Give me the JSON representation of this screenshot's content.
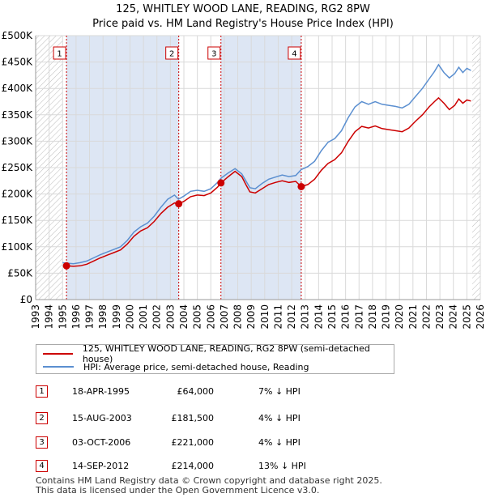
{
  "title_line1": "125, WHITLEY WOOD LANE, READING, RG2 8PW",
  "title_line2": "Price paid vs. HM Land Registry's House Price Index (HPI)",
  "legend": {
    "price_label": "125, WHITLEY WOOD LANE, READING, RG2 8PW (semi-detached house)",
    "hpi_label": "HPI: Average price, semi-detached house, Reading"
  },
  "sales": [
    {
      "id": "1",
      "date": "18-APR-1995",
      "price": "£64,000",
      "hpi_diff": "7% ↓ HPI"
    },
    {
      "id": "2",
      "date": "15-AUG-2003",
      "price": "£181,500",
      "hpi_diff": "4% ↓ HPI"
    },
    {
      "id": "3",
      "date": "03-OCT-2006",
      "price": "£221,000",
      "hpi_diff": "4% ↓ HPI"
    },
    {
      "id": "4",
      "date": "14-SEP-2012",
      "price": "£214,000",
      "hpi_diff": "13% ↓ HPI"
    }
  ],
  "footer_line1": "Contains HM Land Registry data © Crown copyright and database right 2025.",
  "footer_line2": "This data is licensed under the Open Government Licence v3.0.",
  "colors": {
    "price": "#cc0000",
    "hpi": "#5b8fd0",
    "band": "#dde6f4",
    "grid": "#d9d9d9"
  },
  "chart_data": {
    "type": "line",
    "xlim": [
      1993,
      2026
    ],
    "ylim": [
      0,
      500000
    ],
    "x_ticks": [
      "1993",
      "1994",
      "1995",
      "1996",
      "1997",
      "1998",
      "1999",
      "2000",
      "2001",
      "2002",
      "2003",
      "2004",
      "2005",
      "2006",
      "2007",
      "2008",
      "2009",
      "2010",
      "2011",
      "2012",
      "2013",
      "2014",
      "2015",
      "2016",
      "2017",
      "2018",
      "2019",
      "2020",
      "2021",
      "2022",
      "2023",
      "2024",
      "2025",
      "2026"
    ],
    "y_ticks": [
      {
        "value": 0,
        "label": "£0"
      },
      {
        "value": 50000,
        "label": "£50K"
      },
      {
        "value": 100000,
        "label": "£100K"
      },
      {
        "value": 150000,
        "label": "£150K"
      },
      {
        "value": 200000,
        "label": "£200K"
      },
      {
        "value": 250000,
        "label": "£250K"
      },
      {
        "value": 300000,
        "label": "£300K"
      },
      {
        "value": 350000,
        "label": "£350K"
      },
      {
        "value": 400000,
        "label": "£400K"
      },
      {
        "value": 450000,
        "label": "£450K"
      },
      {
        "value": 500000,
        "label": "£500K"
      }
    ],
    "sale_markers": [
      {
        "label": "1",
        "x": 1995.29,
        "y": 64000
      },
      {
        "label": "2",
        "x": 2003.62,
        "y": 181500
      },
      {
        "label": "3",
        "x": 2006.75,
        "y": 221000
      },
      {
        "label": "4",
        "x": 2012.71,
        "y": 214000
      }
    ],
    "series": [
      {
        "name": "HPI: Average price, semi-detached house, Reading",
        "color": "#5b8fd0",
        "points": [
          [
            1995.0,
            70000
          ],
          [
            1995.3,
            69000
          ],
          [
            1995.8,
            68000
          ],
          [
            1996.3,
            70000
          ],
          [
            1996.8,
            73000
          ],
          [
            1997.3,
            79000
          ],
          [
            1997.8,
            85000
          ],
          [
            1998.3,
            90000
          ],
          [
            1998.8,
            95000
          ],
          [
            1999.3,
            100000
          ],
          [
            1999.8,
            112000
          ],
          [
            2000.3,
            128000
          ],
          [
            2000.8,
            138000
          ],
          [
            2001.3,
            145000
          ],
          [
            2001.8,
            158000
          ],
          [
            2002.3,
            175000
          ],
          [
            2002.8,
            190000
          ],
          [
            2003.3,
            198000
          ],
          [
            2003.6,
            190000
          ],
          [
            2004.0,
            196000
          ],
          [
            2004.5,
            205000
          ],
          [
            2005.0,
            207000
          ],
          [
            2005.5,
            205000
          ],
          [
            2006.0,
            210000
          ],
          [
            2006.5,
            222000
          ],
          [
            2006.75,
            230000
          ],
          [
            2007.3,
            240000
          ],
          [
            2007.8,
            248000
          ],
          [
            2008.3,
            238000
          ],
          [
            2008.6,
            225000
          ],
          [
            2008.9,
            212000
          ],
          [
            2009.3,
            210000
          ],
          [
            2009.8,
            220000
          ],
          [
            2010.3,
            228000
          ],
          [
            2010.8,
            232000
          ],
          [
            2011.3,
            236000
          ],
          [
            2011.8,
            233000
          ],
          [
            2012.3,
            235000
          ],
          [
            2012.7,
            246000
          ],
          [
            2013.2,
            252000
          ],
          [
            2013.7,
            262000
          ],
          [
            2014.2,
            282000
          ],
          [
            2014.7,
            298000
          ],
          [
            2015.2,
            305000
          ],
          [
            2015.7,
            320000
          ],
          [
            2016.2,
            345000
          ],
          [
            2016.7,
            365000
          ],
          [
            2017.2,
            375000
          ],
          [
            2017.7,
            370000
          ],
          [
            2018.2,
            375000
          ],
          [
            2018.7,
            370000
          ],
          [
            2019.2,
            368000
          ],
          [
            2019.7,
            366000
          ],
          [
            2020.2,
            363000
          ],
          [
            2020.7,
            370000
          ],
          [
            2021.2,
            385000
          ],
          [
            2021.7,
            400000
          ],
          [
            2022.2,
            418000
          ],
          [
            2022.6,
            432000
          ],
          [
            2022.9,
            445000
          ],
          [
            2023.3,
            430000
          ],
          [
            2023.7,
            420000
          ],
          [
            2024.1,
            428000
          ],
          [
            2024.4,
            440000
          ],
          [
            2024.7,
            430000
          ],
          [
            2025.0,
            438000
          ],
          [
            2025.3,
            434000
          ]
        ]
      },
      {
        "name": "125, WHITLEY WOOD LANE, READING, RG2 8PW (semi-detached house)",
        "color": "#cc0000",
        "points": [
          [
            1995.29,
            64000
          ],
          [
            1995.8,
            63000
          ],
          [
            1996.3,
            64000
          ],
          [
            1996.8,
            67000
          ],
          [
            1997.3,
            73000
          ],
          [
            1997.8,
            79000
          ],
          [
            1998.3,
            84000
          ],
          [
            1998.8,
            89000
          ],
          [
            1999.3,
            94000
          ],
          [
            1999.8,
            105000
          ],
          [
            2000.3,
            120000
          ],
          [
            2000.8,
            130000
          ],
          [
            2001.3,
            136000
          ],
          [
            2001.8,
            148000
          ],
          [
            2002.3,
            163000
          ],
          [
            2002.8,
            175000
          ],
          [
            2003.3,
            183000
          ],
          [
            2003.62,
            181500
          ],
          [
            2004.0,
            186000
          ],
          [
            2004.5,
            195000
          ],
          [
            2005.0,
            198000
          ],
          [
            2005.5,
            197000
          ],
          [
            2006.0,
            202000
          ],
          [
            2006.5,
            213000
          ],
          [
            2006.75,
            221000
          ],
          [
            2007.3,
            233000
          ],
          [
            2007.8,
            243000
          ],
          [
            2008.3,
            233000
          ],
          [
            2008.6,
            218000
          ],
          [
            2008.9,
            204000
          ],
          [
            2009.3,
            202000
          ],
          [
            2009.8,
            210000
          ],
          [
            2010.3,
            218000
          ],
          [
            2010.8,
            222000
          ],
          [
            2011.3,
            225000
          ],
          [
            2011.8,
            222000
          ],
          [
            2012.3,
            224000
          ],
          [
            2012.71,
            214000
          ],
          [
            2013.2,
            218000
          ],
          [
            2013.7,
            228000
          ],
          [
            2014.2,
            245000
          ],
          [
            2014.7,
            258000
          ],
          [
            2015.2,
            265000
          ],
          [
            2015.7,
            278000
          ],
          [
            2016.2,
            300000
          ],
          [
            2016.7,
            318000
          ],
          [
            2017.2,
            328000
          ],
          [
            2017.7,
            325000
          ],
          [
            2018.2,
            329000
          ],
          [
            2018.7,
            324000
          ],
          [
            2019.2,
            322000
          ],
          [
            2019.7,
            320000
          ],
          [
            2020.2,
            318000
          ],
          [
            2020.7,
            325000
          ],
          [
            2021.2,
            338000
          ],
          [
            2021.7,
            350000
          ],
          [
            2022.2,
            365000
          ],
          [
            2022.6,
            375000
          ],
          [
            2022.9,
            382000
          ],
          [
            2023.3,
            372000
          ],
          [
            2023.7,
            360000
          ],
          [
            2024.1,
            368000
          ],
          [
            2024.4,
            380000
          ],
          [
            2024.7,
            372000
          ],
          [
            2025.0,
            378000
          ],
          [
            2025.3,
            376000
          ]
        ]
      }
    ]
  }
}
